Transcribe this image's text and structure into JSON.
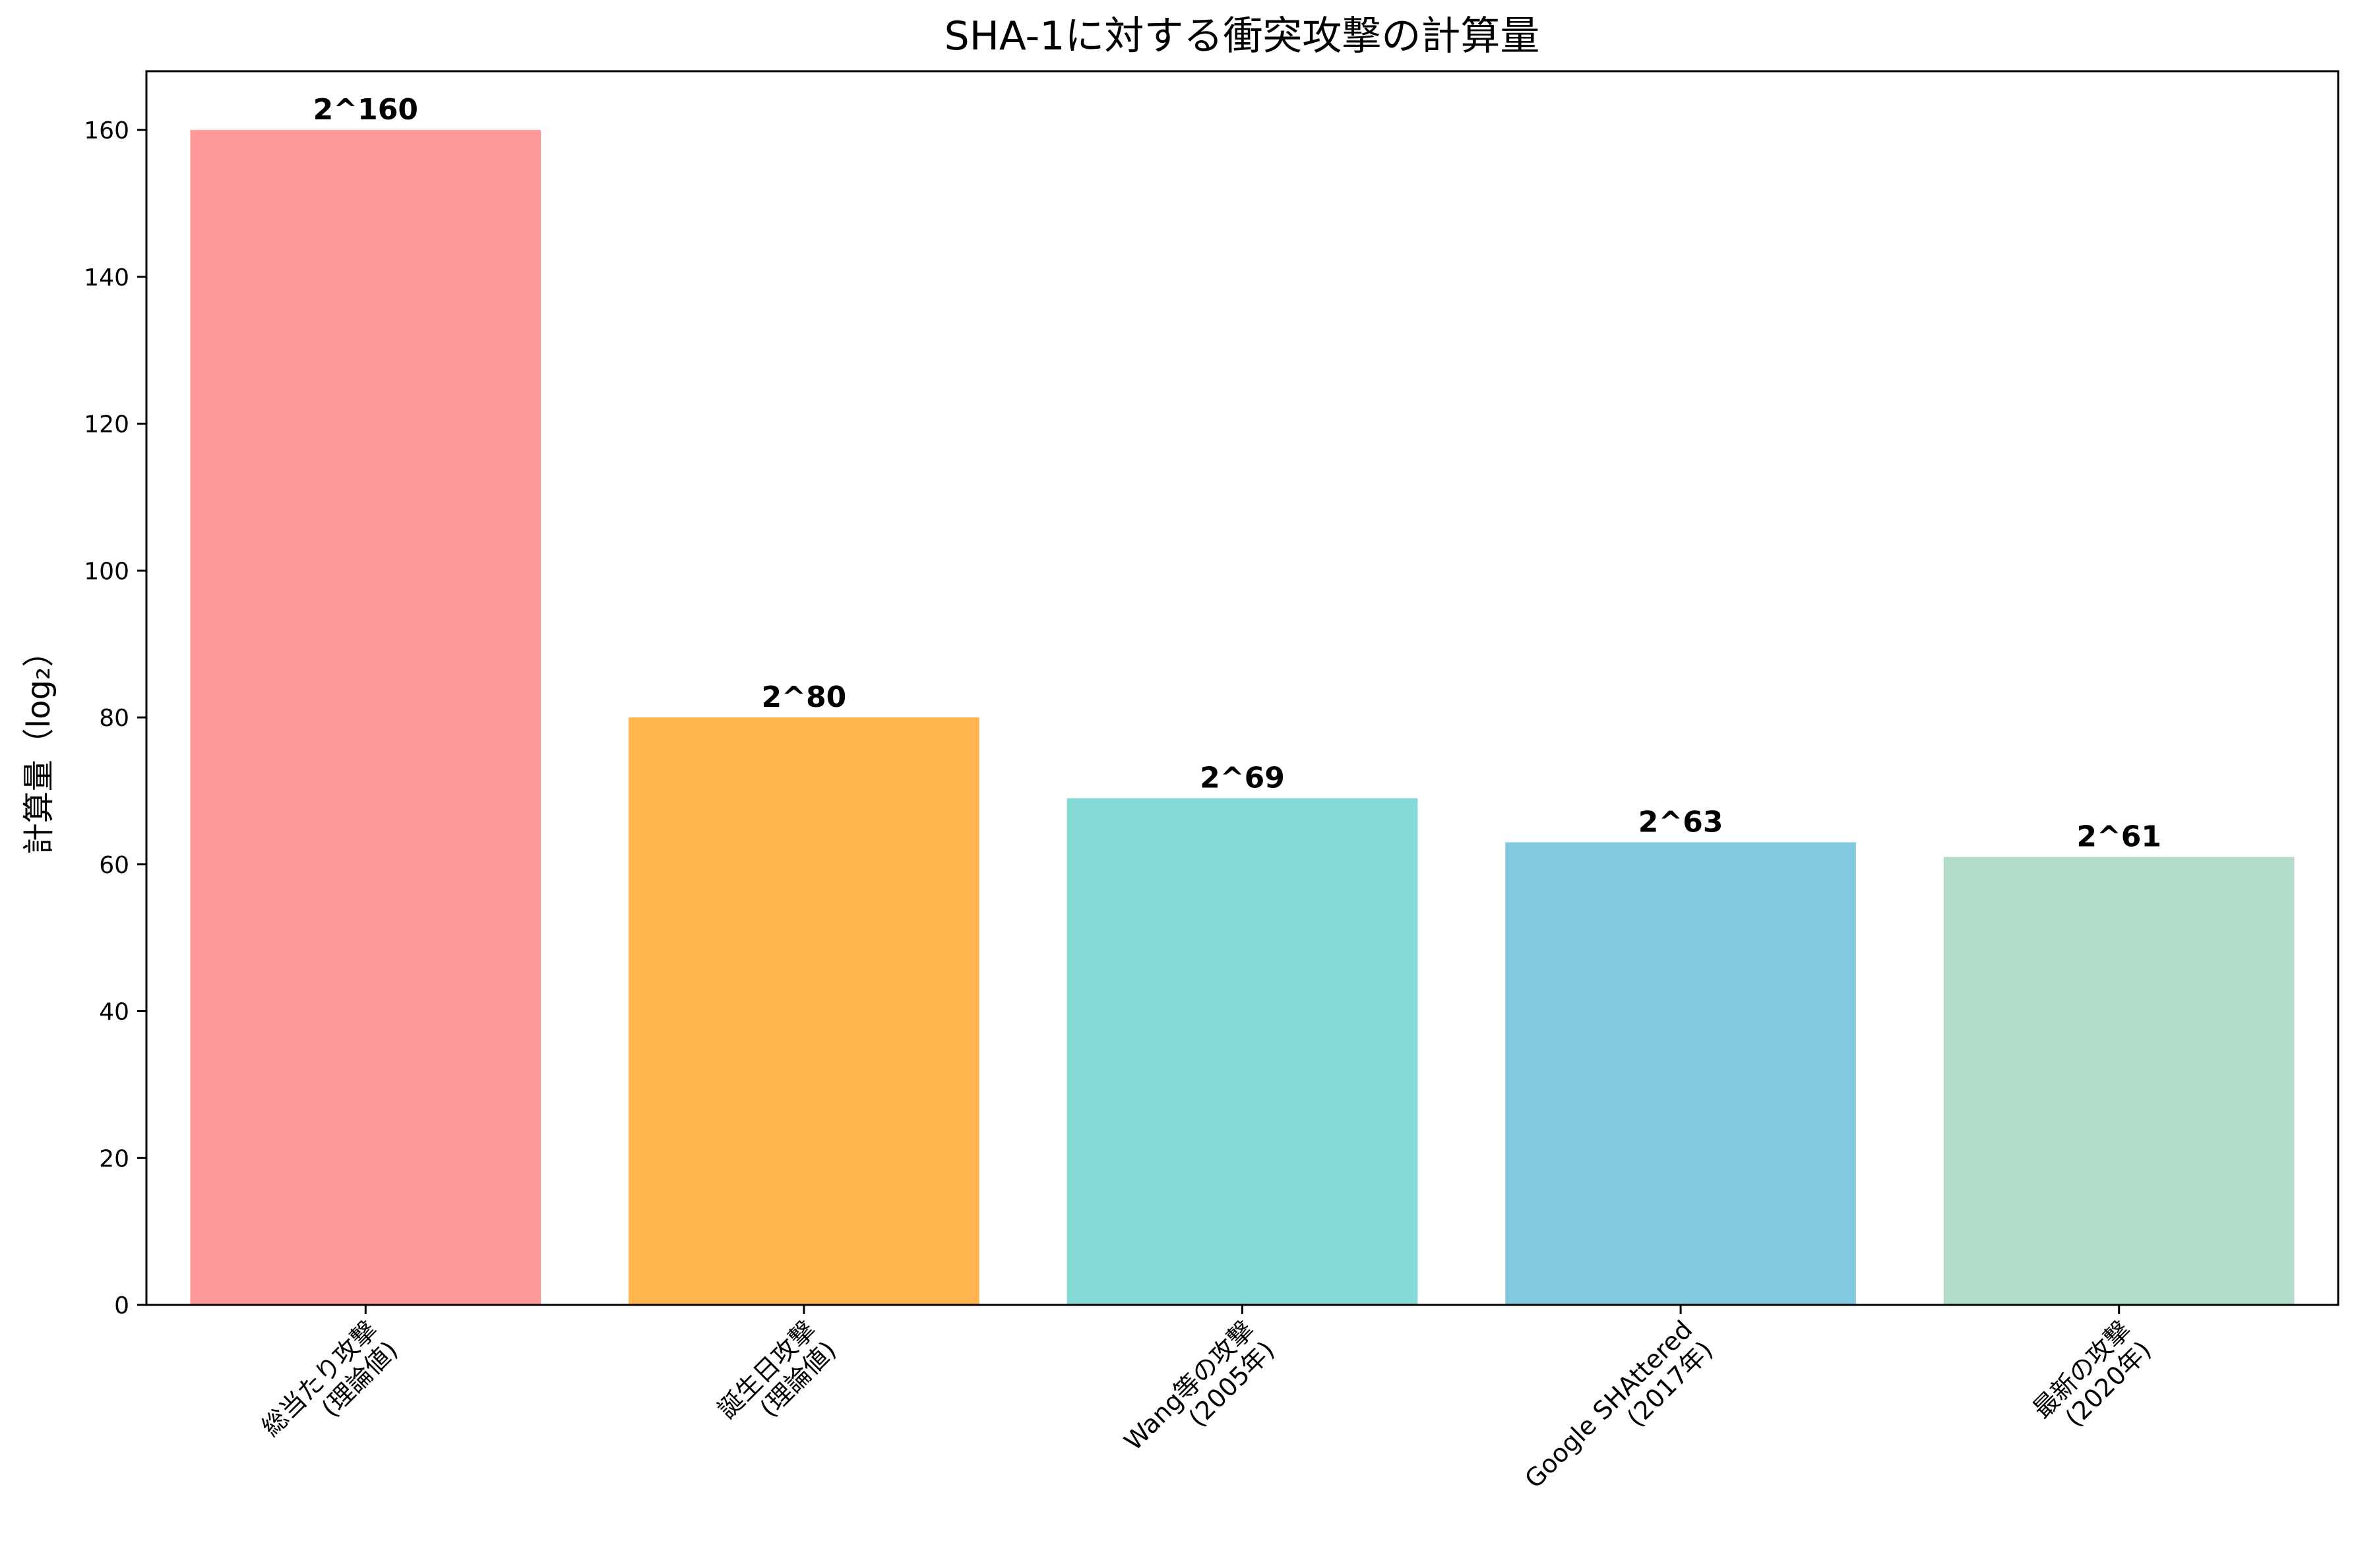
{
  "chart_data": {
    "type": "bar",
    "title": "SHA-1に対する衝突攻撃の計算量",
    "xlabel": "",
    "ylabel": "計算量（log₂）",
    "categories": [
      "総当たり攻撃\n(理論値)",
      "誕生日攻撃\n(理論値)",
      "Wang等の攻撃\n(2005年)",
      "Google SHAttered\n(2017年)",
      "最新の攻撃\n(2020年)"
    ],
    "values": [
      160,
      80,
      69,
      63,
      61
    ],
    "data_labels": [
      "2^160",
      "2^80",
      "2^69",
      "2^63",
      "2^61"
    ],
    "colors": [
      "#ff9999",
      "#ffb44d",
      "#84dad5",
      "#80c9de",
      "#b3dcc9"
    ],
    "ylim": [
      0,
      168
    ],
    "yticks": [
      0,
      20,
      40,
      60,
      80,
      100,
      120,
      140,
      160
    ],
    "grid": false,
    "legend": "none"
  }
}
